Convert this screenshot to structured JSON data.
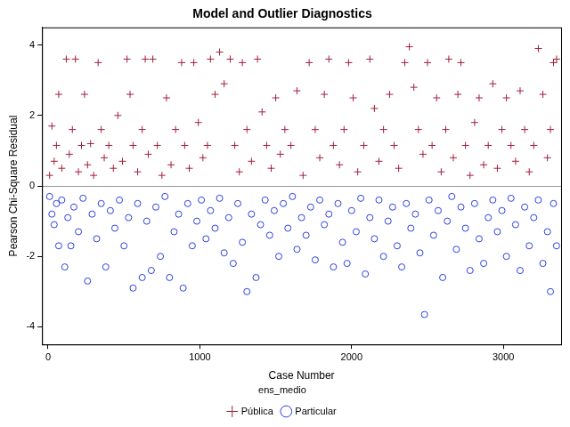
{
  "chart_data": {
    "type": "scatter",
    "title": "Model and Outlier Diagnostics",
    "x_label": "Case Number",
    "y_label": "Pearson Chi-Square Residual",
    "legend_title": "ens_medio",
    "legend": "bottom",
    "grid": false,
    "xlim": [
      -40,
      3380
    ],
    "xticks": [
      0,
      1000,
      2000,
      3000
    ],
    "ylim": [
      -4.5,
      4.5
    ],
    "yticks": [
      -4,
      -2,
      0,
      2,
      4
    ],
    "series": [
      {
        "name": "Pública",
        "color": "#a0203a",
        "marker": "plus",
        "x": [
          10,
          25,
          40,
          55,
          70,
          90,
          120,
          140,
          160,
          180,
          200,
          220,
          240,
          260,
          280,
          300,
          330,
          350,
          370,
          400,
          430,
          460,
          490,
          520,
          540,
          560,
          590,
          620,
          640,
          660,
          690,
          720,
          750,
          780,
          810,
          840,
          880,
          900,
          930,
          960,
          990,
          1020,
          1050,
          1070,
          1100,
          1130,
          1160,
          1200,
          1230,
          1260,
          1280,
          1310,
          1340,
          1380,
          1410,
          1440,
          1470,
          1500,
          1530,
          1560,
          1600,
          1640,
          1680,
          1720,
          1760,
          1790,
          1820,
          1850,
          1880,
          1920,
          1950,
          1980,
          2010,
          2040,
          2080,
          2120,
          2150,
          2180,
          2210,
          2250,
          2280,
          2310,
          2350,
          2380,
          2410,
          2440,
          2470,
          2500,
          2530,
          2560,
          2590,
          2620,
          2640,
          2670,
          2700,
          2720,
          2750,
          2780,
          2810,
          2840,
          2870,
          2900,
          2930,
          2960,
          2990,
          3020,
          3050,
          3080,
          3110,
          3140,
          3170,
          3200,
          3230,
          3260,
          3290,
          3310,
          3330,
          3350
        ],
        "values": [
          0.3,
          1.7,
          0.7,
          1.15,
          2.6,
          0.5,
          3.6,
          0.9,
          1.6,
          3.6,
          0.4,
          1.15,
          2.6,
          0.6,
          1.2,
          0.3,
          3.5,
          1.6,
          0.8,
          1.15,
          0.5,
          2.0,
          0.7,
          3.6,
          2.6,
          1.15,
          0.4,
          1.6,
          3.6,
          0.9,
          3.6,
          1.15,
          0.3,
          2.5,
          0.6,
          1.6,
          3.5,
          1.15,
          0.5,
          3.5,
          1.8,
          0.8,
          1.15,
          3.6,
          2.6,
          3.8,
          2.9,
          3.6,
          1.15,
          0.4,
          3.5,
          1.6,
          0.7,
          3.6,
          2.1,
          1.15,
          0.5,
          2.5,
          0.9,
          1.6,
          1.15,
          2.7,
          0.3,
          3.5,
          1.6,
          0.8,
          2.6,
          3.6,
          1.15,
          0.6,
          1.6,
          3.5,
          2.5,
          0.4,
          1.15,
          3.6,
          2.2,
          0.7,
          1.6,
          2.6,
          1.15,
          0.5,
          3.5,
          3.95,
          2.8,
          1.6,
          0.9,
          3.5,
          1.15,
          2.5,
          0.4,
          1.6,
          3.6,
          0.8,
          2.6,
          3.5,
          1.15,
          0.3,
          1.8,
          2.5,
          0.6,
          1.15,
          2.9,
          0.5,
          1.6,
          2.5,
          1.15,
          0.7,
          2.7,
          1.6,
          0.4,
          1.15,
          3.9,
          2.6,
          0.8,
          1.6,
          3.5,
          3.6
        ]
      },
      {
        "name": "Particular",
        "color": "#2b3fe0",
        "marker": "circle",
        "x": [
          10,
          25,
          40,
          55,
          70,
          90,
          110,
          130,
          150,
          170,
          200,
          230,
          260,
          290,
          320,
          350,
          380,
          410,
          440,
          470,
          500,
          530,
          560,
          590,
          620,
          650,
          680,
          710,
          740,
          770,
          800,
          830,
          860,
          890,
          920,
          950,
          980,
          1010,
          1040,
          1070,
          1100,
          1130,
          1160,
          1190,
          1220,
          1250,
          1280,
          1310,
          1340,
          1370,
          1400,
          1430,
          1460,
          1490,
          1520,
          1550,
          1580,
          1610,
          1640,
          1670,
          1700,
          1730,
          1760,
          1790,
          1820,
          1850,
          1880,
          1910,
          1940,
          1970,
          2000,
          2030,
          2060,
          2090,
          2120,
          2150,
          2180,
          2210,
          2240,
          2270,
          2300,
          2330,
          2360,
          2390,
          2420,
          2450,
          2480,
          2510,
          2540,
          2570,
          2600,
          2630,
          2660,
          2690,
          2720,
          2750,
          2780,
          2810,
          2840,
          2870,
          2900,
          2930,
          2960,
          2990,
          3020,
          3050,
          3080,
          3110,
          3140,
          3170,
          3200,
          3230,
          3260,
          3290,
          3310,
          3330,
          3350
        ],
        "values": [
          -0.3,
          -0.8,
          -1.1,
          -0.5,
          -1.7,
          -0.4,
          -2.3,
          -0.9,
          -1.7,
          -0.6,
          -1.3,
          -0.35,
          -2.7,
          -0.8,
          -1.5,
          -0.5,
          -2.3,
          -0.7,
          -1.2,
          -0.4,
          -1.7,
          -0.9,
          -2.9,
          -0.5,
          -2.6,
          -1.0,
          -2.4,
          -0.6,
          -2.0,
          -0.3,
          -2.6,
          -1.3,
          -0.8,
          -2.9,
          -0.5,
          -1.7,
          -1.0,
          -0.4,
          -1.5,
          -0.7,
          -1.2,
          -0.35,
          -1.9,
          -0.9,
          -2.2,
          -0.5,
          -1.6,
          -3.0,
          -0.8,
          -2.6,
          -1.1,
          -0.4,
          -1.4,
          -0.7,
          -2.0,
          -0.5,
          -1.2,
          -0.3,
          -1.8,
          -0.9,
          -1.4,
          -0.6,
          -2.1,
          -0.4,
          -1.1,
          -0.8,
          -2.3,
          -0.5,
          -1.6,
          -2.2,
          -0.7,
          -1.3,
          -0.35,
          -2.5,
          -0.9,
          -1.5,
          -0.4,
          -2.0,
          -1.0,
          -0.6,
          -1.7,
          -2.3,
          -0.5,
          -1.2,
          -0.8,
          -1.9,
          -3.65,
          -0.4,
          -1.4,
          -0.7,
          -2.6,
          -1.0,
          -0.3,
          -1.8,
          -0.6,
          -1.2,
          -2.4,
          -0.5,
          -1.5,
          -2.2,
          -0.9,
          -0.4,
          -1.3,
          -0.7,
          -2.0,
          -0.35,
          -1.1,
          -2.4,
          -0.6,
          -1.7,
          -0.9,
          -0.4,
          -2.2,
          -1.3,
          -3.0,
          -0.5,
          -1.7
        ]
      }
    ]
  }
}
